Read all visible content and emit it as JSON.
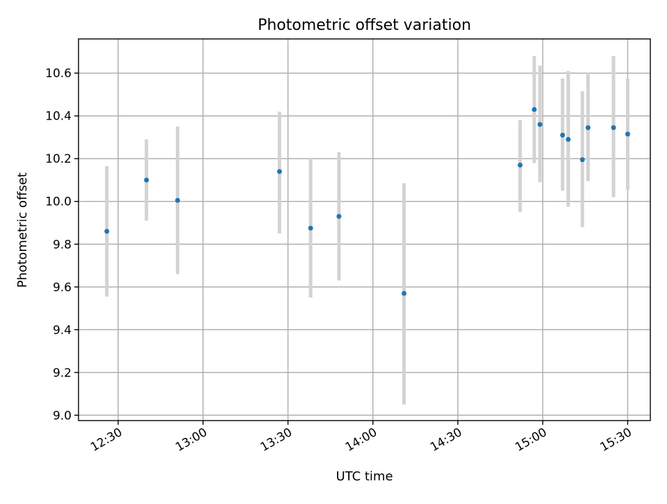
{
  "chart_data": {
    "type": "scatter",
    "title": "Photometric offset variation",
    "xlabel": "UTC time",
    "ylabel": "Photometric offset",
    "x_tick_labels": [
      "12:30",
      "13:00",
      "13:30",
      "14:00",
      "14:30",
      "15:00",
      "15:30"
    ],
    "x_ticks": [
      "12:30",
      "13:00",
      "13:30",
      "14:00",
      "14:30",
      "15:00",
      "15:30"
    ],
    "y_ticks": [
      9.0,
      9.2,
      9.4,
      9.6,
      9.8,
      10.0,
      10.2,
      10.4,
      10.6
    ],
    "y_tick_labels": [
      "9.0",
      "9.2",
      "9.4",
      "9.6",
      "9.8",
      "10.0",
      "10.2",
      "10.4",
      "10.6"
    ],
    "xlim": [
      "12:16",
      "15:38"
    ],
    "ylim": [
      8.975,
      10.76
    ],
    "grid": true,
    "colors": {
      "point": "#1f77b4",
      "errorbar": "#d3d3d3"
    },
    "series": [
      {
        "x": [
          "12:26",
          "12:40",
          "12:51",
          "13:27",
          "13:38",
          "13:48",
          "14:11",
          "14:52",
          "14:57",
          "14:59",
          "15:07",
          "15:09",
          "15:14",
          "15:16",
          "15:25",
          "15:30"
        ],
        "y": [
          9.86,
          10.1,
          10.005,
          10.14,
          9.875,
          9.93,
          9.57,
          10.17,
          10.43,
          10.36,
          10.31,
          10.29,
          10.195,
          10.345,
          10.345,
          10.315
        ],
        "y_low": [
          9.555,
          9.91,
          9.66,
          9.85,
          9.55,
          9.63,
          9.05,
          9.95,
          10.18,
          10.09,
          10.05,
          9.975,
          9.88,
          10.095,
          10.02,
          10.055
        ],
        "y_high": [
          10.165,
          10.29,
          10.35,
          10.42,
          10.2,
          10.23,
          10.085,
          10.38,
          10.68,
          10.635,
          10.575,
          10.61,
          10.515,
          10.6,
          10.68,
          10.575
        ]
      }
    ]
  }
}
